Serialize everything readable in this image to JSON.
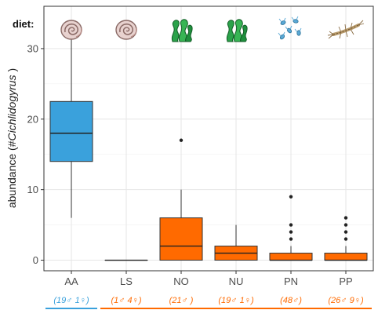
{
  "chart_data": {
    "type": "box",
    "title": "",
    "xlabel": "",
    "ylabel": {
      "prefix": "abundance (#",
      "italic": "Cichlidogyrus",
      "suffix": " )"
    },
    "ylim": [
      -1.5,
      36
    ],
    "yticks": [
      0,
      10,
      20,
      30
    ],
    "grid": true,
    "diet_label": "diet:",
    "categories": [
      "AA",
      "LS",
      "NO",
      "NU",
      "PN",
      "PP"
    ],
    "diet_icons": [
      "snail-shell",
      "snail-shell",
      "green-algae",
      "green-algae",
      "zooplankton",
      "insect-larva"
    ],
    "boxes": [
      {
        "category": "AA",
        "min": 6,
        "q1": 14,
        "median": 18,
        "q3": 22.5,
        "max": 32,
        "outliers": [],
        "fill": "#3aa1dc"
      },
      {
        "category": "LS",
        "min": 0,
        "q1": 0,
        "median": 0,
        "q3": 0,
        "max": 0,
        "outliers": [],
        "fill": "#ff6a00"
      },
      {
        "category": "NO",
        "min": 0,
        "q1": 0,
        "median": 2,
        "q3": 6,
        "max": 10,
        "outliers": [
          17
        ],
        "fill": "#ff6a00"
      },
      {
        "category": "NU",
        "min": 0,
        "q1": 0,
        "median": 1,
        "q3": 2,
        "max": 5,
        "outliers": [],
        "fill": "#ff6a00"
      },
      {
        "category": "PN",
        "min": 0,
        "q1": 0,
        "median": 0,
        "q3": 1,
        "max": 2,
        "outliers": [
          3,
          4,
          5,
          9
        ],
        "fill": "#ff6a00"
      },
      {
        "category": "PP",
        "min": 0,
        "q1": 0,
        "median": 0,
        "q3": 1,
        "max": 2,
        "outliers": [
          3,
          4,
          5,
          6
        ],
        "fill": "#ff6a00"
      }
    ],
    "sample_sizes": [
      "(19♂ 1♀)",
      "(1♂ 4♀)",
      "(21♂ )",
      "(19♂ 1♀)",
      "(48♂)",
      "(26♂ 9♀)"
    ],
    "sample_colors": [
      "#3aa1dc",
      "#ff6a00",
      "#ff6a00",
      "#ff6a00",
      "#ff6a00",
      "#ff6a00"
    ],
    "group_lines": [
      {
        "from": 0,
        "to": 0,
        "color": "#3aa1dc"
      },
      {
        "from": 1,
        "to": 5,
        "color": "#ff6a00"
      }
    ]
  }
}
